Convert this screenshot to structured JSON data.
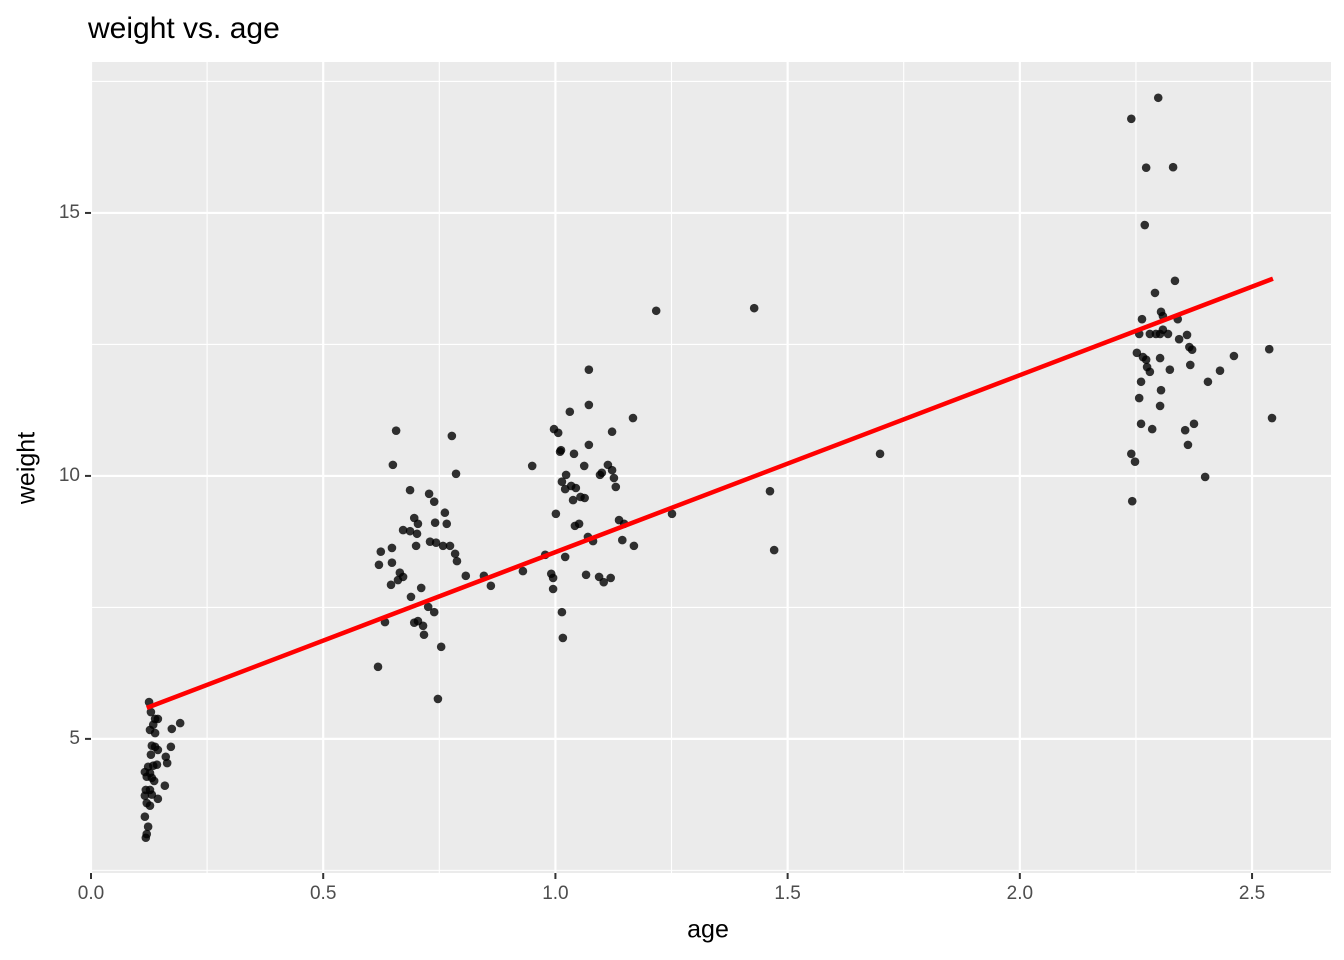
{
  "chart_data": {
    "type": "scatter",
    "title": "weight vs. age",
    "x_label": "age",
    "y_label": "weight",
    "x": [
      0.125,
      0.129,
      0.138,
      0.144,
      0.134,
      0.127,
      0.138,
      0.174,
      0.192,
      0.131,
      0.138,
      0.144,
      0.172,
      0.129,
      0.161,
      0.164,
      0.142,
      0.123,
      0.134,
      0.116,
      0.127,
      0.12,
      0.131,
      0.136,
      0.159,
      0.118,
      0.127,
      0.116,
      0.131,
      0.144,
      0.12,
      0.127,
      0.116,
      0.123,
      0.12,
      0.118,
      0.657,
      0.777,
      0.65,
      0.786,
      0.687,
      0.728,
      0.739,
      0.762,
      0.696,
      0.704,
      0.741,
      0.766,
      0.672,
      0.687,
      0.702,
      0.73,
      0.743,
      0.758,
      0.7,
      0.773,
      0.648,
      0.624,
      0.784,
      0.788,
      0.648,
      0.62,
      0.665,
      0.672,
      0.661,
      0.807,
      0.846,
      0.646,
      0.861,
      0.711,
      0.689,
      0.726,
      0.739,
      0.633,
      0.696,
      0.704,
      0.715,
      0.717,
      0.754,
      0.618,
      0.747,
      1.217,
      1.072,
      1.072,
      1.167,
      1.031,
      0.997,
      1.006,
      1.122,
      1.072,
      1.012,
      1.01,
      1.04,
      0.95,
      1.062,
      1.113,
      1.122,
      1.023,
      1.096,
      1.1,
      1.126,
      1.014,
      1.034,
      1.044,
      1.13,
      1.021,
      1.054,
      1.063,
      1.038,
      1.001,
      1.251,
      1.137,
      1.042,
      1.051,
      1.148,
      1.07,
      1.081,
      1.144,
      1.169,
      0.978,
      1.021,
      0.93,
      0.991,
      1.066,
      0.995,
      1.094,
      1.119,
      1.104,
      0.995,
      1.014,
      1.016,
      1.428,
      1.462,
      1.471,
      1.699,
      2.298,
      2.24,
      2.272,
      2.33,
      2.269,
      2.334,
      2.291,
      2.304,
      2.308,
      2.263,
      2.34,
      2.257,
      2.28,
      2.293,
      2.302,
      2.319,
      2.308,
      2.36,
      2.343,
      2.365,
      2.537,
      2.371,
      2.252,
      2.265,
      2.272,
      2.302,
      2.461,
      2.274,
      2.28,
      2.323,
      2.367,
      2.431,
      2.261,
      2.405,
      2.304,
      2.257,
      2.302,
      2.543,
      2.261,
      2.375,
      2.285,
      2.356,
      2.362,
      2.24,
      2.248,
      2.399,
      2.242
    ],
    "values": [
      5.7,
      5.51,
      5.38,
      5.38,
      5.27,
      5.17,
      5.11,
      5.19,
      5.3,
      4.87,
      4.85,
      4.79,
      4.85,
      4.7,
      4.66,
      4.54,
      4.51,
      4.47,
      4.49,
      4.37,
      4.35,
      4.28,
      4.26,
      4.2,
      4.11,
      4.03,
      4.03,
      3.92,
      3.94,
      3.86,
      3.78,
      3.73,
      3.52,
      3.33,
      3.19,
      3.12,
      10.86,
      10.76,
      10.21,
      10.04,
      9.73,
      9.66,
      9.51,
      9.3,
      9.2,
      9.09,
      9.11,
      9.09,
      8.97,
      8.95,
      8.9,
      8.75,
      8.73,
      8.67,
      8.67,
      8.67,
      8.63,
      8.56,
      8.52,
      8.38,
      8.35,
      8.31,
      8.16,
      8.08,
      8.02,
      8.1,
      8.1,
      7.93,
      7.91,
      7.87,
      7.7,
      7.51,
      7.41,
      7.22,
      7.21,
      7.24,
      7.15,
      6.98,
      6.75,
      6.37,
      5.76,
      13.14,
      12.02,
      11.35,
      11.1,
      11.22,
      10.89,
      10.82,
      10.84,
      10.59,
      10.49,
      10.46,
      10.42,
      10.19,
      10.19,
      10.21,
      10.11,
      10.02,
      10.02,
      10.06,
      9.96,
      9.89,
      9.81,
      9.77,
      9.79,
      9.75,
      9.6,
      9.58,
      9.54,
      9.28,
      9.28,
      9.16,
      9.05,
      9.09,
      9.09,
      8.84,
      8.76,
      8.78,
      8.67,
      8.5,
      8.46,
      8.19,
      8.14,
      8.12,
      8.06,
      8.08,
      8.06,
      7.98,
      7.85,
      7.41,
      6.92,
      13.19,
      9.71,
      8.59,
      10.42,
      17.19,
      16.79,
      15.86,
      15.87,
      14.77,
      13.71,
      13.48,
      13.12,
      13.04,
      12.98,
      12.98,
      12.7,
      12.7,
      12.7,
      12.7,
      12.7,
      12.78,
      12.68,
      12.6,
      12.45,
      12.41,
      12.4,
      12.34,
      12.26,
      12.21,
      12.24,
      12.28,
      12.07,
      11.98,
      12.02,
      12.11,
      12,
      11.79,
      11.79,
      11.63,
      11.48,
      11.33,
      11.1,
      10.99,
      10.99,
      10.89,
      10.87,
      10.59,
      10.42,
      10.27,
      9.98,
      9.52
    ],
    "color": "#000000",
    "opacity": 0.8,
    "trend_line": {
      "x": [
        0.12,
        2.545
      ],
      "values": [
        5.59,
        13.75
      ],
      "color": "#ff0000"
    },
    "xlim": [
      0,
      2.67
    ],
    "ylim": [
      2.45,
      17.87
    ],
    "xticks": [
      {
        "value": 0,
        "label": "0.0"
      },
      0.5,
      {
        "value": 1,
        "label": "1.0"
      },
      1.5,
      {
        "value": 2,
        "label": "2.0"
      },
      2.5
    ],
    "yticks": [
      5,
      10,
      15
    ],
    "grid": true,
    "minor_grid": true
  }
}
